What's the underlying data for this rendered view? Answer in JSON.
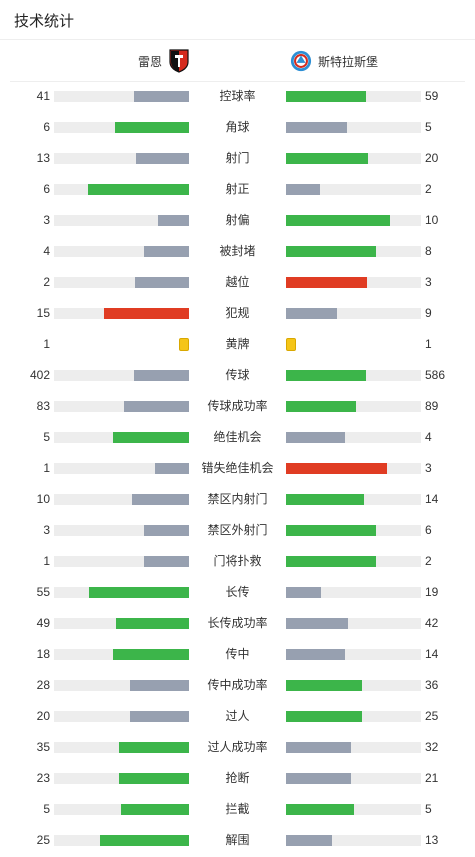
{
  "page_title": "技术统计",
  "teams": {
    "home": {
      "name": "雷恩"
    },
    "away": {
      "name": "斯特拉斯堡"
    }
  },
  "colors": {
    "leader": "#3cb54a",
    "trailer": "#97a0b0",
    "warning": "#e03c23",
    "track": "#ededed",
    "yellow_card": "#f5c518"
  },
  "stats": [
    {
      "label": "控球率",
      "home": "41",
      "away": "59",
      "home_frac": 0.41,
      "away_frac": 0.59,
      "home_color": "trailer",
      "away_color": "leader"
    },
    {
      "label": "角球",
      "home": "6",
      "away": "5",
      "home_frac": 0.55,
      "away_frac": 0.45,
      "home_color": "leader",
      "away_color": "trailer"
    },
    {
      "label": "射门",
      "home": "13",
      "away": "20",
      "home_frac": 0.39,
      "away_frac": 0.61,
      "home_color": "trailer",
      "away_color": "leader"
    },
    {
      "label": "射正",
      "home": "6",
      "away": "2",
      "home_frac": 0.75,
      "away_frac": 0.25,
      "home_color": "leader",
      "away_color": "trailer"
    },
    {
      "label": "射偏",
      "home": "3",
      "away": "10",
      "home_frac": 0.23,
      "away_frac": 0.77,
      "home_color": "trailer",
      "away_color": "leader"
    },
    {
      "label": "被封堵",
      "home": "4",
      "away": "8",
      "home_frac": 0.33,
      "away_frac": 0.67,
      "home_color": "trailer",
      "away_color": "leader"
    },
    {
      "label": "越位",
      "home": "2",
      "away": "3",
      "home_frac": 0.4,
      "away_frac": 0.6,
      "home_color": "trailer",
      "away_color": "warning"
    },
    {
      "label": "犯规",
      "home": "15",
      "away": "9",
      "home_frac": 0.63,
      "away_frac": 0.38,
      "home_color": "warning",
      "away_color": "trailer"
    },
    {
      "label": "黄牌",
      "home": "1",
      "away": "1",
      "card": true
    },
    {
      "label": "传球",
      "home": "402",
      "away": "586",
      "home_frac": 0.41,
      "away_frac": 0.59,
      "home_color": "trailer",
      "away_color": "leader"
    },
    {
      "label": "传球成功率",
      "home": "83",
      "away": "89",
      "home_frac": 0.48,
      "away_frac": 0.52,
      "home_color": "trailer",
      "away_color": "leader"
    },
    {
      "label": "绝佳机会",
      "home": "5",
      "away": "4",
      "home_frac": 0.56,
      "away_frac": 0.44,
      "home_color": "leader",
      "away_color": "trailer"
    },
    {
      "label": "错失绝佳机会",
      "home": "1",
      "away": "3",
      "home_frac": 0.25,
      "away_frac": 0.75,
      "home_color": "trailer",
      "away_color": "warning"
    },
    {
      "label": "禁区内射门",
      "home": "10",
      "away": "14",
      "home_frac": 0.42,
      "away_frac": 0.58,
      "home_color": "trailer",
      "away_color": "leader"
    },
    {
      "label": "禁区外射门",
      "home": "3",
      "away": "6",
      "home_frac": 0.33,
      "away_frac": 0.67,
      "home_color": "trailer",
      "away_color": "leader"
    },
    {
      "label": "门将扑救",
      "home": "1",
      "away": "2",
      "home_frac": 0.33,
      "away_frac": 0.67,
      "home_color": "trailer",
      "away_color": "leader"
    },
    {
      "label": "长传",
      "home": "55",
      "away": "19",
      "home_frac": 0.74,
      "away_frac": 0.26,
      "home_color": "leader",
      "away_color": "trailer"
    },
    {
      "label": "长传成功率",
      "home": "49",
      "away": "42",
      "home_frac": 0.54,
      "away_frac": 0.46,
      "home_color": "leader",
      "away_color": "trailer"
    },
    {
      "label": "传中",
      "home": "18",
      "away": "14",
      "home_frac": 0.56,
      "away_frac": 0.44,
      "home_color": "leader",
      "away_color": "trailer"
    },
    {
      "label": "传中成功率",
      "home": "28",
      "away": "36",
      "home_frac": 0.44,
      "away_frac": 0.56,
      "home_color": "trailer",
      "away_color": "leader"
    },
    {
      "label": "过人",
      "home": "20",
      "away": "25",
      "home_frac": 0.44,
      "away_frac": 0.56,
      "home_color": "trailer",
      "away_color": "leader"
    },
    {
      "label": "过人成功率",
      "home": "35",
      "away": "32",
      "home_frac": 0.52,
      "away_frac": 0.48,
      "home_color": "leader",
      "away_color": "trailer"
    },
    {
      "label": "抢断",
      "home": "23",
      "away": "21",
      "home_frac": 0.52,
      "away_frac": 0.48,
      "home_color": "leader",
      "away_color": "trailer"
    },
    {
      "label": "拦截",
      "home": "5",
      "away": "5",
      "home_frac": 0.5,
      "away_frac": 0.5,
      "home_color": "leader",
      "away_color": "leader"
    },
    {
      "label": "解围",
      "home": "25",
      "away": "13",
      "home_frac": 0.66,
      "away_frac": 0.34,
      "home_color": "leader",
      "away_color": "trailer"
    }
  ]
}
